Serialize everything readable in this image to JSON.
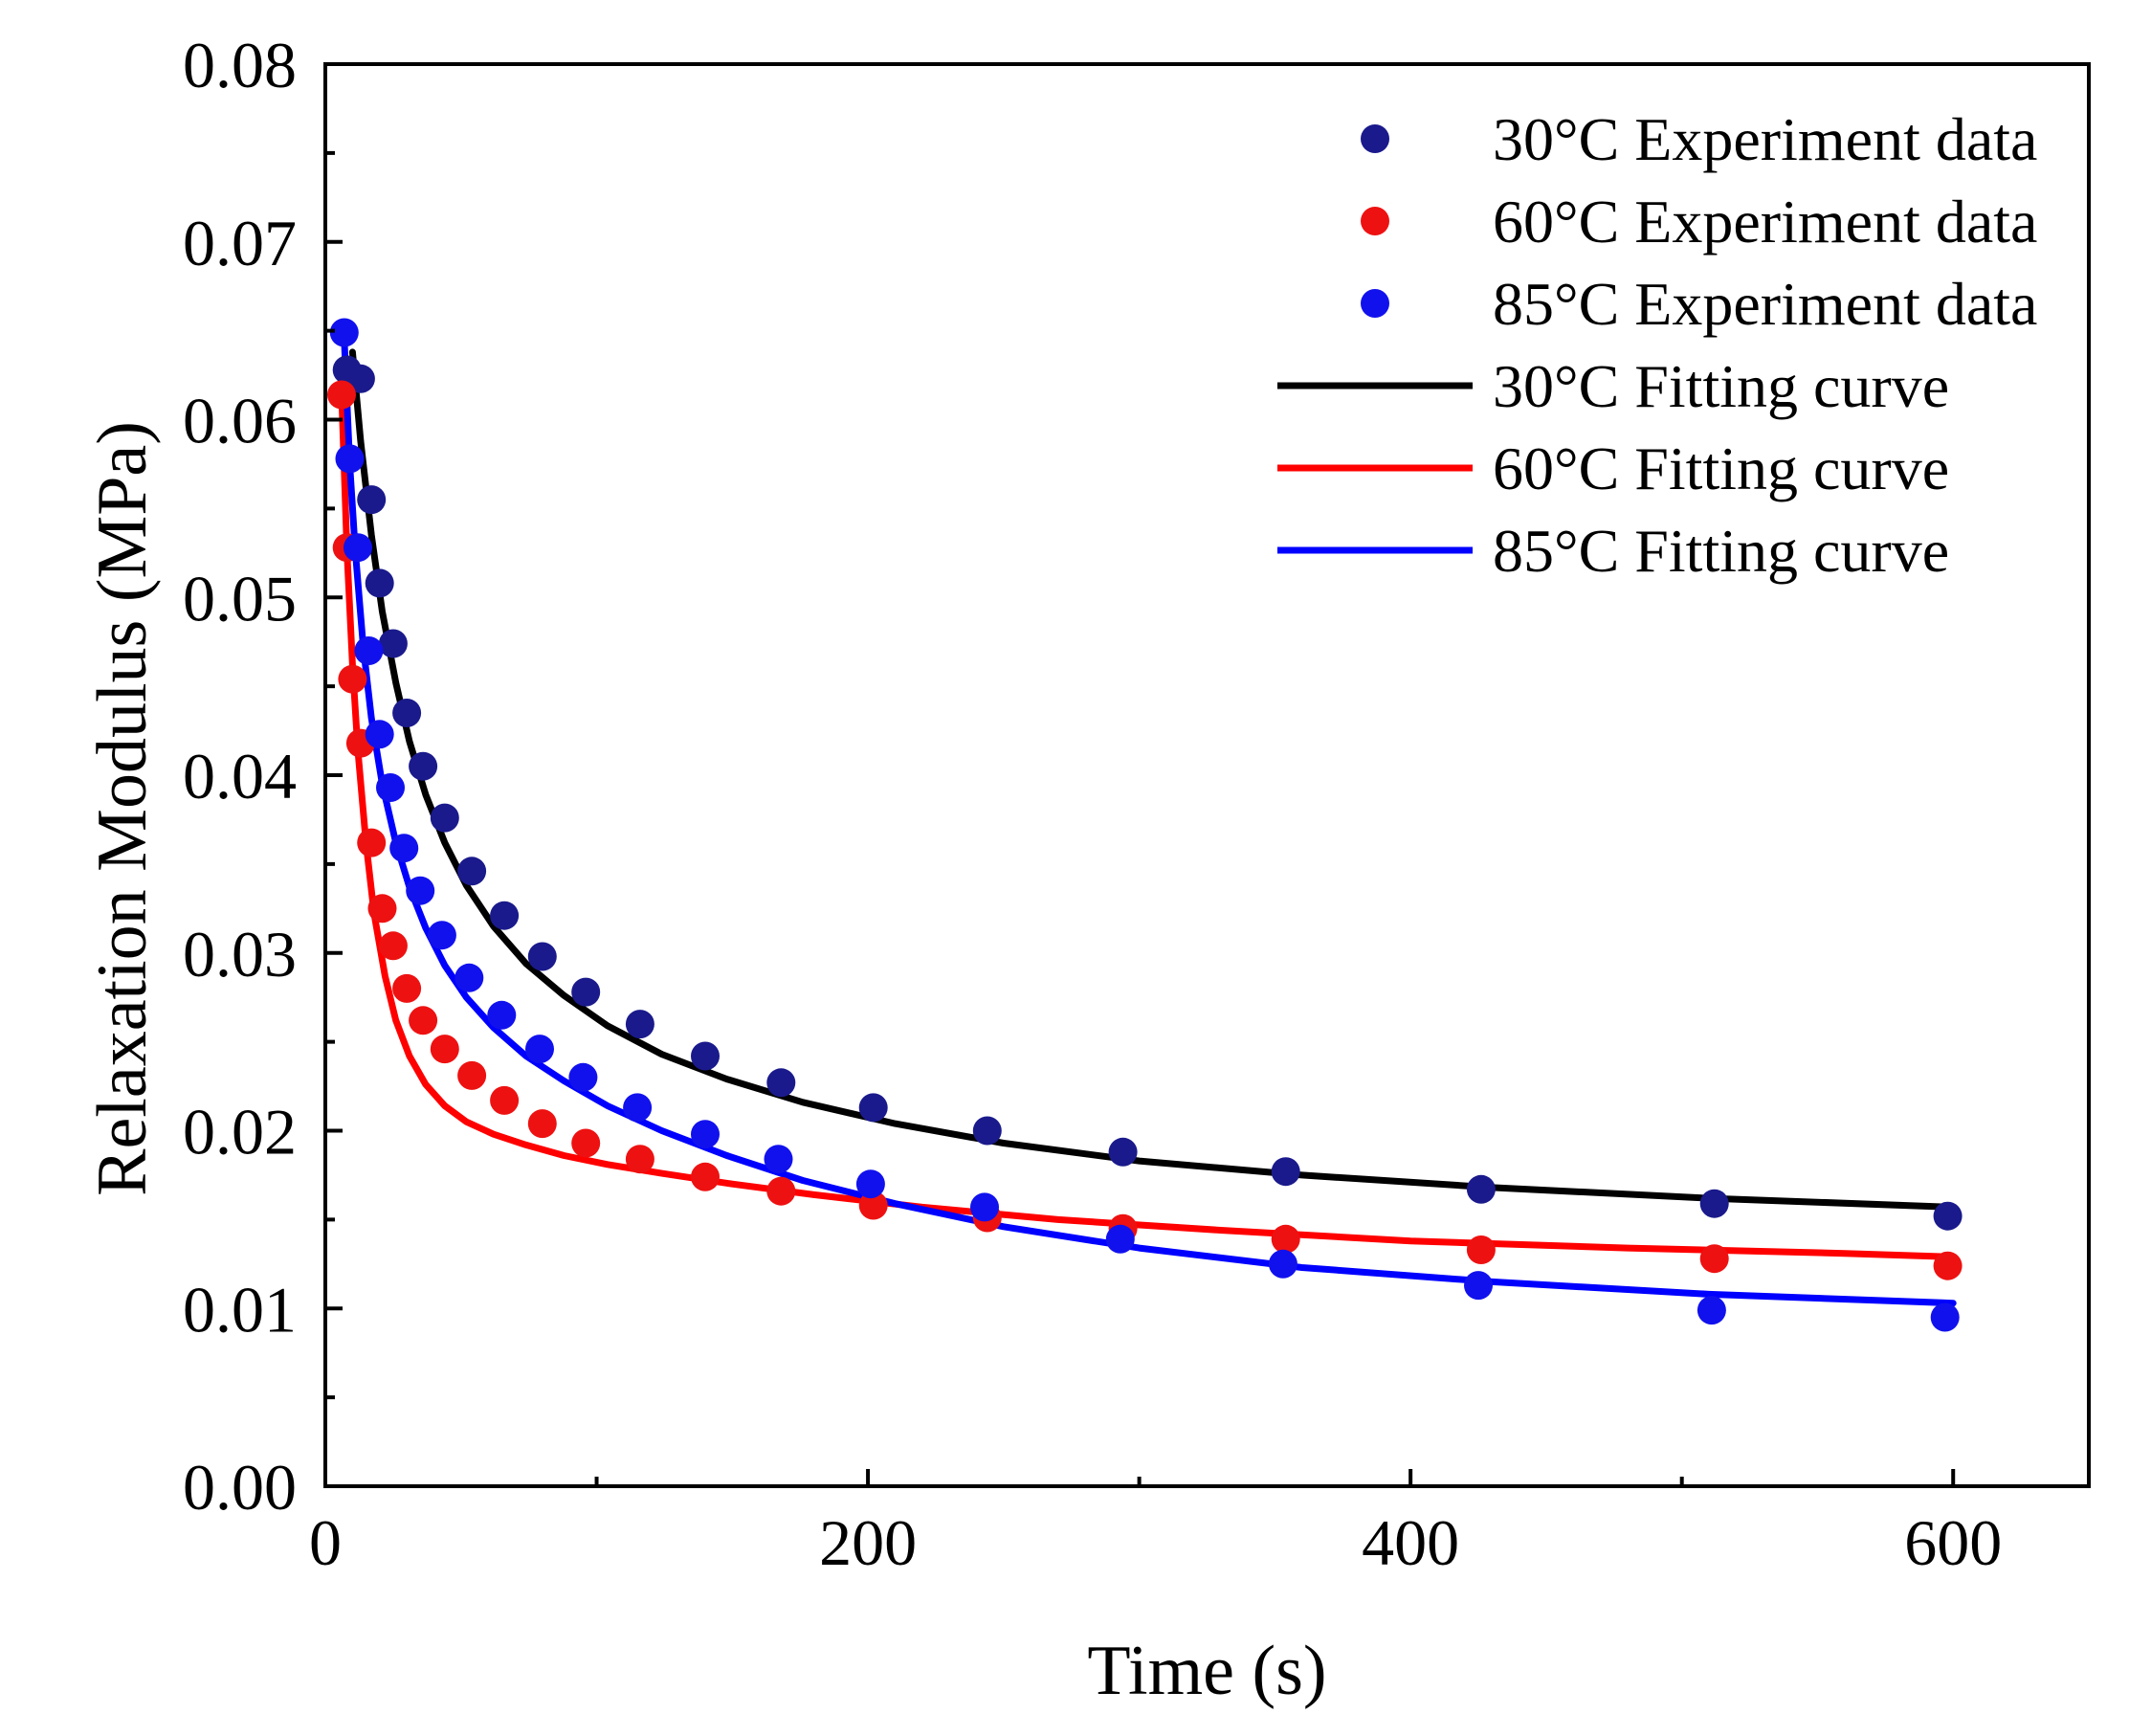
{
  "chart_data": {
    "type": "scatter",
    "title": "",
    "xlabel": "Time (s)",
    "ylabel": "Relaxation Modulus (MPa)",
    "xlim": [
      0,
      650
    ],
    "ylim": [
      0,
      0.08
    ],
    "x_ticks": [
      0,
      200,
      400,
      600
    ],
    "x_tick_labels": [
      "0",
      "200",
      "400",
      "600"
    ],
    "y_ticks": [
      0,
      0.01,
      0.02,
      0.03,
      0.04,
      0.05,
      0.06,
      0.07,
      0.08
    ],
    "y_tick_labels": [
      "0.00",
      "0.01",
      "0.02",
      "0.03",
      "0.04",
      "0.05",
      "0.06",
      "0.07",
      "0.08"
    ],
    "grid": false,
    "legend_position": "top-right",
    "series": [
      {
        "name": "30°C Experiment data",
        "kind": "scatter",
        "color": "#1a1a8c",
        "x": [
          8,
          13,
          17,
          20,
          25,
          30,
          36,
          44,
          54,
          66,
          80,
          96,
          116,
          140,
          168,
          202,
          244,
          294,
          354,
          426,
          512,
          598
        ],
        "y": [
          0.0628,
          0.0623,
          0.0555,
          0.0508,
          0.0474,
          0.0435,
          0.0405,
          0.0376,
          0.0346,
          0.0321,
          0.0298,
          0.0278,
          0.026,
          0.0242,
          0.0227,
          0.0213,
          0.02,
          0.0188,
          0.0177,
          0.0167,
          0.0159,
          0.0152
        ]
      },
      {
        "name": "60°C Experiment data",
        "kind": "scatter",
        "color": "#ee1111",
        "x": [
          6,
          8,
          10,
          13,
          17,
          21,
          25,
          30,
          36,
          44,
          54,
          66,
          80,
          96,
          116,
          140,
          168,
          202,
          244,
          294,
          354,
          426,
          512,
          598
        ],
        "y": [
          0.0614,
          0.0528,
          0.0454,
          0.0418,
          0.0362,
          0.0325,
          0.0304,
          0.028,
          0.0262,
          0.0246,
          0.0231,
          0.0217,
          0.0204,
          0.0193,
          0.0184,
          0.0174,
          0.0166,
          0.0158,
          0.0151,
          0.0145,
          0.0139,
          0.0133,
          0.0128,
          0.0124
        ]
      },
      {
        "name": "85°C Experiment data",
        "kind": "scatter",
        "color": "#1111ee",
        "x": [
          7,
          9,
          12,
          16,
          20,
          24,
          29,
          35,
          43,
          53,
          65,
          79,
          95,
          115,
          140,
          167,
          201,
          243,
          293,
          353,
          425,
          511,
          597
        ],
        "y": [
          0.0649,
          0.0578,
          0.0528,
          0.047,
          0.0423,
          0.0393,
          0.0359,
          0.0335,
          0.031,
          0.0286,
          0.0265,
          0.0246,
          0.023,
          0.0213,
          0.0198,
          0.0184,
          0.017,
          0.0157,
          0.0139,
          0.0125,
          0.0113,
          0.0099,
          0.0095
        ]
      },
      {
        "name": "30°C Fitting curve",
        "kind": "line",
        "color": "#000000",
        "x": [
          10,
          13,
          17,
          21,
          26,
          31,
          37,
          44,
          52,
          62,
          74,
          88,
          104,
          124,
          148,
          176,
          210,
          250,
          300,
          360,
          430,
          510,
          600
        ],
        "y": [
          0.0638,
          0.0588,
          0.0535,
          0.0492,
          0.0452,
          0.0419,
          0.0389,
          0.0362,
          0.0338,
          0.0315,
          0.0294,
          0.0276,
          0.0259,
          0.0243,
          0.0229,
          0.0216,
          0.0204,
          0.0193,
          0.0183,
          0.0175,
          0.0168,
          0.0162,
          0.0157
        ]
      },
      {
        "name": "60°C Fitting curve",
        "kind": "line",
        "color": "#ff0000",
        "x": [
          6,
          8,
          10,
          12,
          15,
          18,
          22,
          26,
          31,
          37,
          44,
          52,
          62,
          74,
          88,
          104,
          124,
          150,
          180,
          220,
          270,
          330,
          400,
          480,
          560,
          600
        ],
        "y": [
          0.0615,
          0.0525,
          0.0462,
          0.0414,
          0.0362,
          0.0322,
          0.0287,
          0.0262,
          0.0242,
          0.0226,
          0.0214,
          0.0205,
          0.0198,
          0.0192,
          0.0186,
          0.0181,
          0.0176,
          0.017,
          0.0164,
          0.0157,
          0.015,
          0.0144,
          0.0138,
          0.0134,
          0.0131,
          0.0129
        ]
      },
      {
        "name": "85°C Fitting curve",
        "kind": "line",
        "color": "#0000ff",
        "x": [
          7,
          9,
          11,
          14,
          17,
          21,
          26,
          31,
          37,
          44,
          52,
          62,
          74,
          88,
          104,
          124,
          148,
          176,
          210,
          250,
          300,
          360,
          430,
          510,
          600
        ],
        "y": [
          0.0645,
          0.0575,
          0.0527,
          0.0472,
          0.0432,
          0.0395,
          0.0362,
          0.0337,
          0.0314,
          0.0293,
          0.0275,
          0.0258,
          0.0242,
          0.0228,
          0.0214,
          0.02,
          0.0186,
          0.0172,
          0.0159,
          0.0146,
          0.0134,
          0.0123,
          0.0115,
          0.0108,
          0.0103
        ]
      }
    ]
  }
}
